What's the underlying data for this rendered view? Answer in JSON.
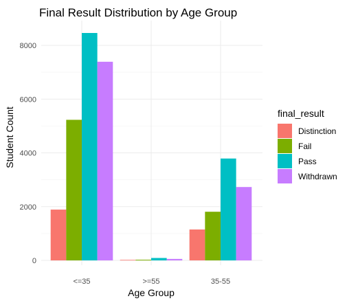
{
  "chart_data": {
    "type": "bar",
    "title": "Final Result Distribution by Age Group",
    "xlabel": "Age Group",
    "ylabel": "Student Count",
    "categories": [
      "<=35",
      ">=55",
      "35-55"
    ],
    "series": [
      {
        "name": "Distinction",
        "color": "#F8766D",
        "values": [
          1890,
          20,
          1150
        ]
      },
      {
        "name": "Fail",
        "color": "#7CAE00",
        "values": [
          5230,
          25,
          1810
        ]
      },
      {
        "name": "Pass",
        "color": "#00BFC4",
        "values": [
          8460,
          90,
          3790
        ]
      },
      {
        "name": "Withdrawn",
        "color": "#C77CFF",
        "values": [
          7390,
          55,
          2730
        ]
      }
    ],
    "ylim": [
      0,
      8900
    ],
    "yticks": [
      0,
      2000,
      4000,
      6000,
      8000
    ],
    "ytick_labels": [
      "0",
      "2000",
      "4000",
      "6000",
      "8000"
    ],
    "legend_title": "final_result",
    "legend_position": "right",
    "grid": true
  }
}
